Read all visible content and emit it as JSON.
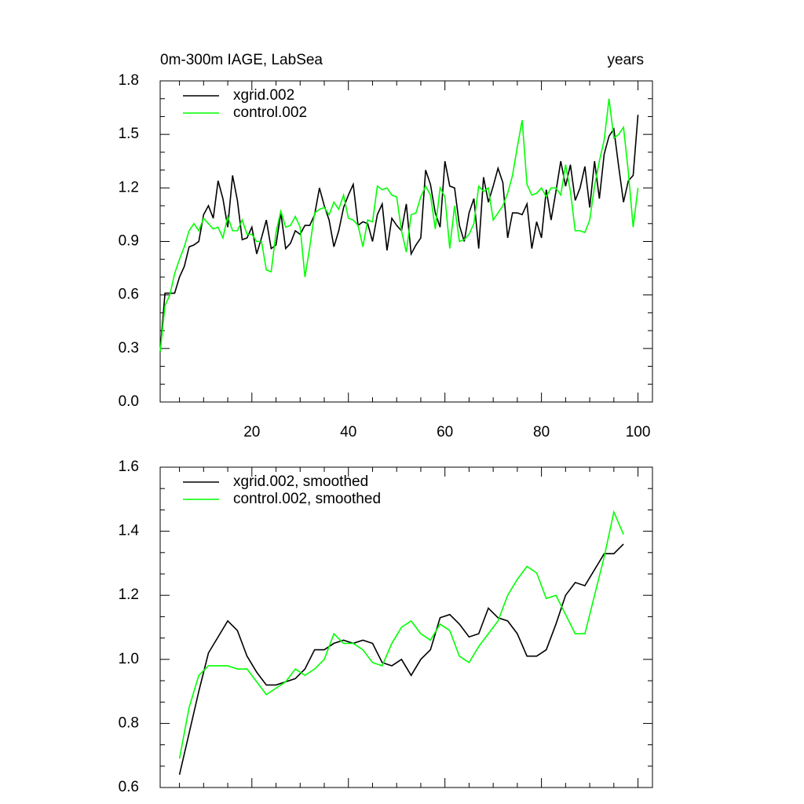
{
  "chart_data": [
    {
      "type": "line",
      "title": "0m-300m IAGE, LabSea",
      "right_title": "years",
      "x": [
        1,
        2,
        3,
        4,
        5,
        6,
        7,
        8,
        9,
        10,
        11,
        12,
        13,
        14,
        15,
        16,
        17,
        18,
        19,
        20,
        21,
        22,
        23,
        24,
        25,
        26,
        27,
        28,
        29,
        30,
        31,
        32,
        33,
        34,
        35,
        36,
        37,
        38,
        39,
        40,
        41,
        42,
        43,
        44,
        45,
        46,
        47,
        48,
        49,
        50,
        51,
        52,
        53,
        54,
        55,
        56,
        57,
        58,
        59,
        60,
        61,
        62,
        63,
        64,
        65,
        66,
        67,
        68,
        69,
        70,
        71,
        72,
        73,
        74,
        75,
        76,
        77,
        78,
        79,
        80,
        81,
        82,
        83,
        84,
        85,
        86,
        87,
        88,
        89,
        90,
        91,
        92,
        93,
        94,
        95,
        96,
        97,
        98,
        99,
        100
      ],
      "series": [
        {
          "name": "xgrid.002",
          "color": "#000000",
          "values": [
            0.28,
            0.61,
            0.61,
            0.61,
            0.7,
            0.76,
            0.87,
            0.88,
            0.9,
            1.05,
            1.1,
            1.03,
            1.24,
            1.14,
            0.98,
            1.27,
            1.13,
            0.91,
            0.92,
            0.98,
            0.83,
            0.92,
            1.02,
            0.86,
            0.88,
            1.06,
            0.86,
            0.89,
            0.96,
            0.94,
            0.99,
            0.99,
            1.05,
            1.2,
            1.1,
            1.02,
            0.87,
            0.96,
            1.09,
            1.16,
            1.22,
            0.99,
            1.01,
            1.0,
            0.9,
            1.05,
            1.11,
            0.85,
            1.03,
            0.99,
            0.96,
            1.11,
            0.83,
            0.88,
            0.92,
            1.3,
            1.22,
            1.06,
            0.98,
            1.35,
            1.21,
            1.2,
            0.99,
            0.9,
            1.06,
            1.14,
            0.86,
            1.26,
            1.12,
            1.21,
            1.31,
            1.23,
            0.92,
            1.06,
            1.06,
            1.05,
            1.11,
            0.86,
            1.01,
            0.92,
            1.19,
            1.02,
            1.18,
            1.35,
            1.21,
            1.33,
            1.13,
            1.2,
            1.32,
            1.09,
            1.35,
            1.14,
            1.39,
            1.49,
            1.53,
            1.32,
            1.12,
            1.24,
            1.27,
            1.61
          ]
        },
        {
          "name": "control.002",
          "color": "#00ff00",
          "values": [
            0.28,
            0.54,
            0.6,
            0.72,
            0.8,
            0.87,
            0.96,
            1.0,
            0.96,
            1.03,
            1.0,
            0.97,
            0.98,
            0.92,
            1.04,
            0.96,
            0.96,
            1.02,
            0.94,
            0.94,
            0.9,
            0.9,
            0.74,
            0.73,
            0.95,
            1.07,
            0.98,
            0.99,
            1.04,
            0.98,
            0.7,
            0.87,
            1.06,
            1.08,
            1.09,
            1.05,
            1.12,
            1.08,
            1.16,
            1.03,
            1.02,
            0.99,
            0.87,
            1.02,
            1.01,
            1.21,
            1.19,
            1.2,
            1.16,
            1.15,
            0.96,
            0.84,
            1.05,
            1.06,
            1.15,
            1.21,
            1.16,
            0.97,
            1.2,
            1.15,
            0.86,
            1.1,
            0.9,
            0.91,
            0.94,
            1.0,
            1.21,
            1.18,
            1.2,
            1.02,
            1.06,
            1.1,
            1.17,
            1.27,
            1.43,
            1.58,
            1.22,
            1.16,
            1.17,
            1.2,
            1.15,
            1.2,
            1.2,
            1.16,
            1.33,
            1.18,
            0.96,
            0.96,
            0.95,
            1.02,
            1.21,
            1.35,
            1.47,
            1.7,
            1.48,
            1.5,
            1.54,
            1.29,
            0.98,
            1.2
          ]
        }
      ],
      "xlim": [
        1,
        103
      ],
      "xticks": [
        20,
        40,
        60,
        80,
        100
      ],
      "xtick_labels": true,
      "ylim": [
        0,
        1.8
      ],
      "yticks": [
        {
          "value": 0,
          "label": "0.0"
        },
        0.3,
        0.6,
        0.9,
        1.2,
        1.5,
        1.8
      ]
    },
    {
      "type": "line",
      "x": [
        5,
        7,
        9,
        11,
        13,
        15,
        17,
        19,
        21,
        23,
        25,
        27,
        29,
        31,
        33,
        35,
        37,
        39,
        41,
        43,
        45,
        47,
        49,
        51,
        53,
        55,
        57,
        59,
        61,
        63,
        65,
        67,
        69,
        71,
        73,
        75,
        77,
        79,
        81,
        83,
        85,
        87,
        89,
        91,
        93,
        95,
        97
      ],
      "series": [
        {
          "name": "xgrid.002, smoothed",
          "color": "#000000",
          "values": [
            0.64,
            0.77,
            0.9,
            1.02,
            1.07,
            1.12,
            1.09,
            1.01,
            0.96,
            0.92,
            0.92,
            0.93,
            0.94,
            0.97,
            1.03,
            1.03,
            1.05,
            1.06,
            1.05,
            1.06,
            1.05,
            0.99,
            0.98,
            1.0,
            0.95,
            1.0,
            1.03,
            1.13,
            1.14,
            1.11,
            1.07,
            1.08,
            1.16,
            1.13,
            1.12,
            1.08,
            1.01,
            1.01,
            1.03,
            1.11,
            1.2,
            1.24,
            1.23,
            1.28,
            1.33,
            1.33,
            1.36
          ]
        },
        {
          "name": "control.002, smoothed",
          "color": "#00ff00",
          "values": [
            0.69,
            0.85,
            0.95,
            0.98,
            0.98,
            0.98,
            0.97,
            0.97,
            0.93,
            0.89,
            0.91,
            0.93,
            0.97,
            0.95,
            0.97,
            1.0,
            1.08,
            1.05,
            1.05,
            1.03,
            0.99,
            0.98,
            1.05,
            1.1,
            1.12,
            1.08,
            1.06,
            1.11,
            1.09,
            1.01,
            0.99,
            1.04,
            1.08,
            1.12,
            1.2,
            1.25,
            1.29,
            1.27,
            1.19,
            1.2,
            1.14,
            1.08,
            1.08,
            1.2,
            1.32,
            1.46,
            1.39
          ]
        }
      ],
      "xlim": [
        1,
        103
      ],
      "xticks": [
        20,
        40,
        60,
        80,
        100
      ],
      "xtick_labels": false,
      "ylim": [
        0.6,
        1.6
      ],
      "yticks": [
        0.6,
        0.8,
        {
          "value": 1,
          "label": "1.0"
        },
        1.2,
        1.4,
        1.6
      ]
    }
  ]
}
